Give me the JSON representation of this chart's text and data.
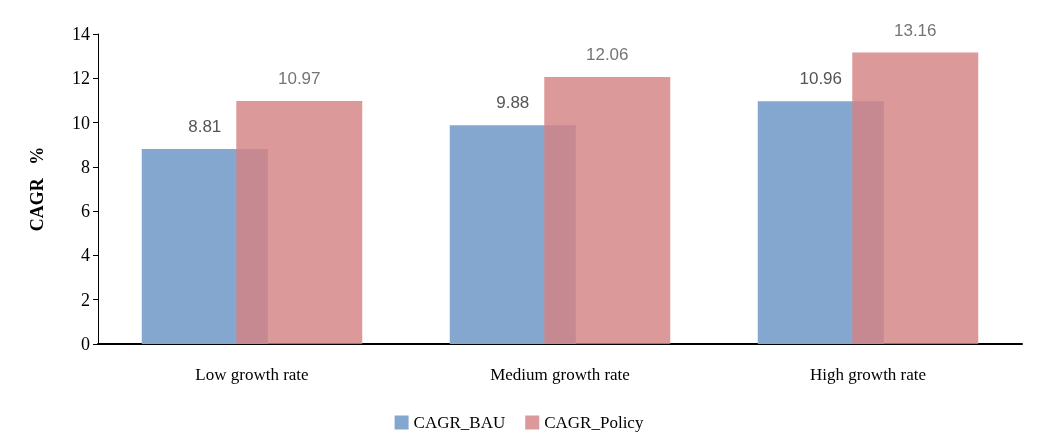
{
  "chart_data": {
    "type": "bar",
    "ylabel": "CAGR   %",
    "categories": [
      "Low growth rate",
      "Medium growth rate",
      "High growth rate"
    ],
    "series": [
      {
        "name": "CAGR_BAU",
        "color": "#84a7d0",
        "values": [
          8.81,
          9.88,
          10.96
        ]
      },
      {
        "name": "CAGR_Policy",
        "color": "#d48283",
        "values": [
          10.97,
          12.06,
          13.16
        ]
      }
    ],
    "ylim": [
      0,
      14
    ],
    "yticks": [
      0,
      2,
      4,
      6,
      8,
      10,
      12,
      14
    ],
    "grid": false,
    "legend": "bottom",
    "data_labels": true
  }
}
